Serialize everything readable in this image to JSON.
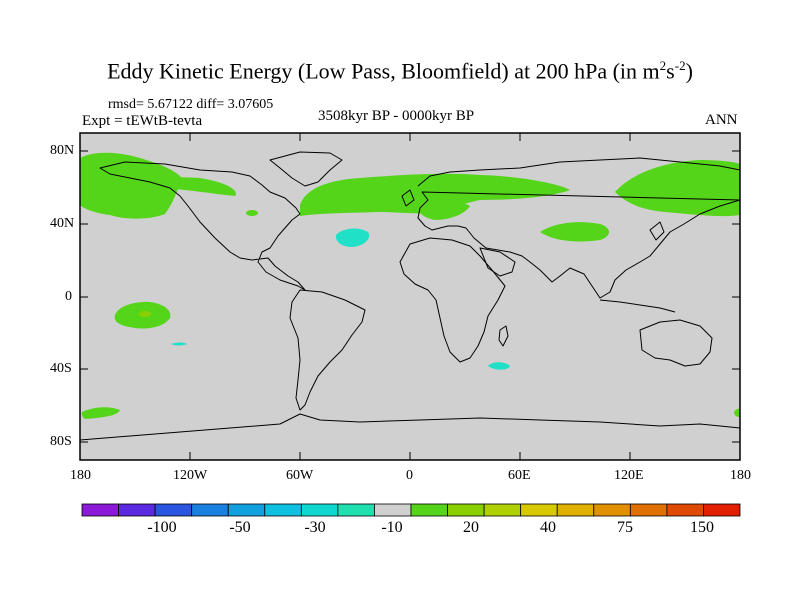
{
  "title": {
    "main": "Eddy Kinetic Energy (Low Pass, Bloomfield) at 200 hPa (in m",
    "sup1": "2",
    "mid": "s",
    "sup2": "-2",
    "end": ")"
  },
  "stats": "rmsd= 5.67122 diff= 3.07605",
  "experiment": "Expt = tEWtB-tevta",
  "period": "3508kyr BP - 0000kyr BP",
  "season": "ANN",
  "y_ticks": [
    "80N",
    "40N",
    "0",
    "40S",
    "80S"
  ],
  "x_ticks": [
    "180",
    "120W",
    "60W",
    "0",
    "60E",
    "120E",
    "180"
  ],
  "colorbar": {
    "colors": [
      "#8a1ad8",
      "#5a2ae0",
      "#2a55e0",
      "#1a80e0",
      "#10a0e0",
      "#10c0e0",
      "#10d8d0",
      "#20e0b0",
      "#d0d0d0",
      "#55d51a",
      "#8ad000",
      "#b0d000",
      "#d8c800",
      "#e0b000",
      "#e09000",
      "#e07000",
      "#e04a00",
      "#e02000"
    ],
    "labels": [
      "-100",
      "-50",
      "-30",
      "-10",
      "20",
      "40",
      "75",
      "150"
    ]
  },
  "colors": {
    "background": "#d0d0d0",
    "positive_light": "#55d51a",
    "positive_mid": "#8ad000",
    "negative_light": "#20e0c8"
  }
}
